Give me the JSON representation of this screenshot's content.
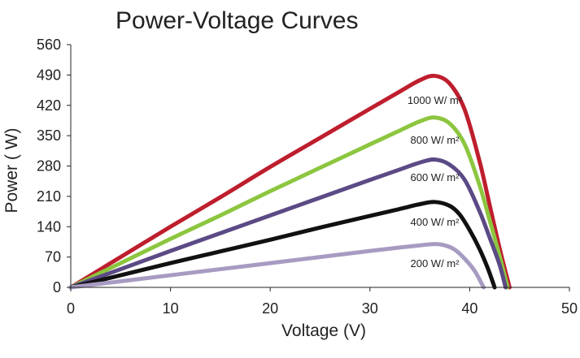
{
  "chart_data": {
    "type": "line",
    "title": "Power-Voltage Curves",
    "xlabel": "Voltage (V)",
    "ylabel": "Power ( W)",
    "xlim": [
      0,
      50
    ],
    "ylim": [
      0,
      560
    ],
    "xticks": [
      "0",
      "10",
      "20",
      "30",
      "40",
      "50"
    ],
    "yticks": [
      "0",
      "70",
      "140",
      "210",
      "280",
      "350",
      "420",
      "490",
      "560"
    ],
    "grid": false,
    "legend": "inline-labels",
    "series": [
      {
        "name": "1000 W/ m²",
        "color": "#be1e2d",
        "label_at": [
          36.5,
          431
        ],
        "x": [
          0,
          5,
          10,
          15,
          20,
          25,
          30,
          33,
          35,
          36.5,
          38,
          39.5,
          41,
          42,
          43,
          44
        ],
        "y": [
          0,
          70,
          140,
          208,
          278,
          345,
          412,
          452,
          478,
          488,
          470,
          410,
          290,
          190,
          90,
          0
        ]
      },
      {
        "name": "800 W/ m²",
        "color": "#8cc63f",
        "label_at": [
          36.5,
          339
        ],
        "x": [
          0,
          5,
          10,
          15,
          20,
          25,
          30,
          33,
          35,
          36.5,
          38,
          39.5,
          41,
          42,
          43,
          43.8
        ],
        "y": [
          0,
          56,
          112,
          166,
          222,
          276,
          330,
          362,
          383,
          392,
          378,
          330,
          235,
          155,
          72,
          0
        ]
      },
      {
        "name": "600 W/ m²",
        "color": "#5b4a85",
        "label_at": [
          36.5,
          253
        ],
        "x": [
          0,
          5,
          10,
          15,
          20,
          25,
          30,
          33,
          35,
          36.5,
          38,
          39.5,
          41,
          42,
          43,
          43.6
        ],
        "y": [
          0,
          42,
          84,
          125,
          166,
          207,
          248,
          272,
          288,
          295,
          283,
          248,
          175,
          115,
          52,
          0
        ]
      },
      {
        "name": "400 W/ m²",
        "color": "#111111",
        "label_at": [
          36.5,
          150
        ],
        "x": [
          0,
          5,
          10,
          15,
          20,
          25,
          30,
          33,
          35,
          36.5,
          38,
          39,
          40,
          41,
          41.8,
          42.5
        ],
        "y": [
          0,
          28,
          56,
          83,
          110,
          138,
          165,
          181,
          192,
          197,
          188,
          168,
          132,
          88,
          45,
          0
        ]
      },
      {
        "name": "200 W/ m²",
        "color": "#a89bc2",
        "label_at": [
          36.5,
          54
        ],
        "x": [
          0,
          5,
          10,
          15,
          20,
          25,
          30,
          33,
          35,
          36.5,
          37.5,
          38.5,
          39.5,
          40.5,
          41.4
        ],
        "y": [
          0,
          14,
          28,
          42,
          56,
          70,
          84,
          92,
          97,
          100,
          97,
          87,
          66,
          38,
          0
        ]
      }
    ]
  }
}
